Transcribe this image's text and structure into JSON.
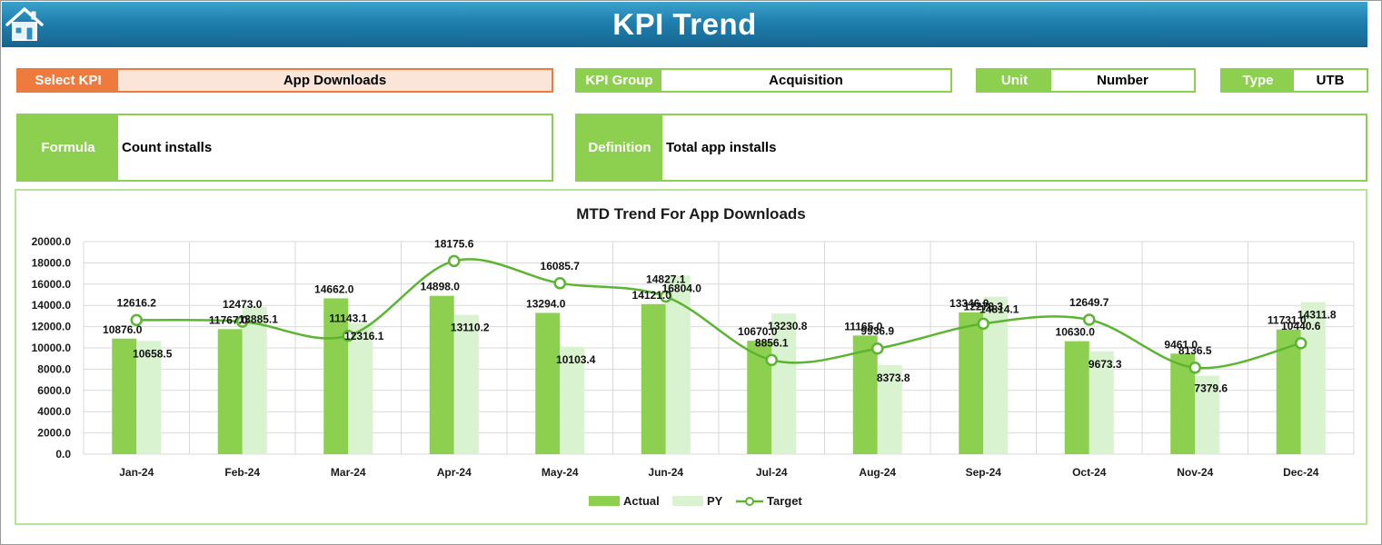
{
  "header": {
    "title": "KPI Trend",
    "home_icon": "home-icon"
  },
  "selectors": {
    "kpi": {
      "label": "Select KPI",
      "value": "App Downloads"
    },
    "group": {
      "label": "KPI Group",
      "value": "Acquisition"
    },
    "unit": {
      "label": "Unit",
      "value": "Number"
    },
    "type": {
      "label": "Type",
      "value": "UTB"
    }
  },
  "details": {
    "formula": {
      "label": "Formula",
      "value": "Count installs"
    },
    "definition": {
      "label": "Definition",
      "value": "Total app installs"
    }
  },
  "colors": {
    "actual": "#8dd04f",
    "py": "#d9f2cf",
    "target": "#5cb531",
    "header": "#1f7fae",
    "accent_orange": "#ee7a3d"
  },
  "chart_data": {
    "type": "bar",
    "title": "MTD Trend For App Downloads",
    "categories": [
      "Jan-24",
      "Feb-24",
      "Mar-24",
      "Apr-24",
      "May-24",
      "Jun-24",
      "Jul-24",
      "Aug-24",
      "Sep-24",
      "Oct-24",
      "Nov-24",
      "Dec-24"
    ],
    "ylim": [
      0,
      20000
    ],
    "yticks": [
      "0.0",
      "2000.0",
      "4000.0",
      "6000.0",
      "8000.0",
      "10000.0",
      "12000.0",
      "14000.0",
      "16000.0",
      "18000.0",
      "20000.0"
    ],
    "grid": true,
    "legend_position": "bottom",
    "series": [
      {
        "name": "Actual",
        "kind": "bar",
        "values": [
          10876.0,
          11767.0,
          14662.0,
          14898.0,
          13294.0,
          14121.0,
          10670.0,
          11165.0,
          13346.0,
          10630.0,
          9461.0,
          11731.0
        ],
        "labels": [
          "10876.0",
          "11767.0",
          "14662.0",
          "14898.0",
          "13294.0",
          "14121.0",
          "10670.0",
          "11165.0",
          "13346.0",
          "10630.0",
          "9461.0",
          "11731.0"
        ]
      },
      {
        "name": "PY",
        "kind": "bar",
        "values": [
          10658.5,
          13885.1,
          12316.1,
          13110.2,
          10103.4,
          16804.0,
          13230.8,
          8373.8,
          14814.1,
          9673.3,
          7379.6,
          14311.8
        ],
        "labels": [
          "10658.5",
          "13885.1",
          "12316.1",
          "13110.2",
          "10103.4",
          "16804.0",
          "13230.8",
          "8373.8",
          "14814.1",
          "9673.3",
          "7379.6",
          "14311.8"
        ]
      },
      {
        "name": "Target",
        "kind": "line",
        "values": [
          12616.2,
          12473.0,
          11143.1,
          18175.6,
          16085.7,
          14827.1,
          8856.1,
          9936.9,
          12278.3,
          12649.7,
          8136.5,
          10440.6
        ],
        "labels": [
          "12616.2",
          "12473.0",
          "11143.1",
          "18175.6",
          "16085.7",
          "14827.1",
          "8856.1",
          "9936.9",
          "12278.3",
          "12649.7",
          "8136.5",
          "10440.6"
        ]
      }
    ]
  }
}
